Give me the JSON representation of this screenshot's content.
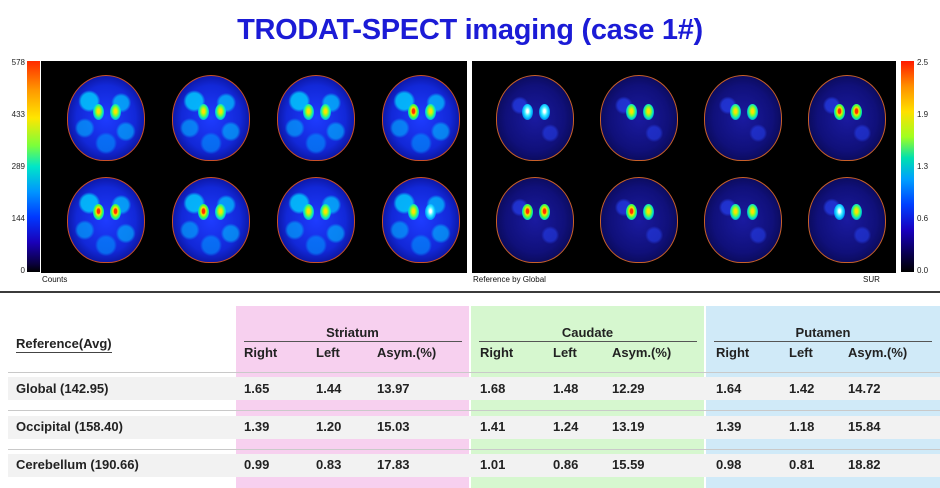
{
  "title": "TRODAT-SPECT imaging (case 1#)",
  "colors": {
    "title": "#1b1bd6",
    "striatum_bg": "#f7d0ef",
    "caudate_bg": "#d6f7cf",
    "putamen_bg": "#d0eaf8"
  },
  "images": {
    "left_caption": "Counts",
    "middle_caption": "Reference by Global",
    "right_caption": "SUR",
    "left_scale": [
      "578",
      "433",
      "289",
      "144",
      "0"
    ],
    "right_scale": [
      "2.5",
      "1.9",
      "1.3",
      "0.6",
      "0.0"
    ]
  },
  "table": {
    "reference_header": "Reference(Avg)",
    "groups": [
      "Striatum",
      "Caudate",
      "Putamen"
    ],
    "sub_headers": [
      "Right",
      "Left",
      "Asym.(%)"
    ],
    "rows": [
      {
        "label": "Global (142.95)",
        "values": [
          "1.65",
          "1.44",
          "13.97",
          "1.68",
          "1.48",
          "12.29",
          "1.64",
          "1.42",
          "14.72"
        ]
      },
      {
        "label": "Occipital (158.40)",
        "values": [
          "1.39",
          "1.20",
          "15.03",
          "1.41",
          "1.24",
          "13.19",
          "1.39",
          "1.18",
          "15.84"
        ]
      },
      {
        "label": "Cerebellum (190.66)",
        "values": [
          "0.99",
          "0.83",
          "17.83",
          "1.01",
          "0.86",
          "15.59",
          "0.98",
          "0.81",
          "18.82"
        ]
      }
    ]
  }
}
